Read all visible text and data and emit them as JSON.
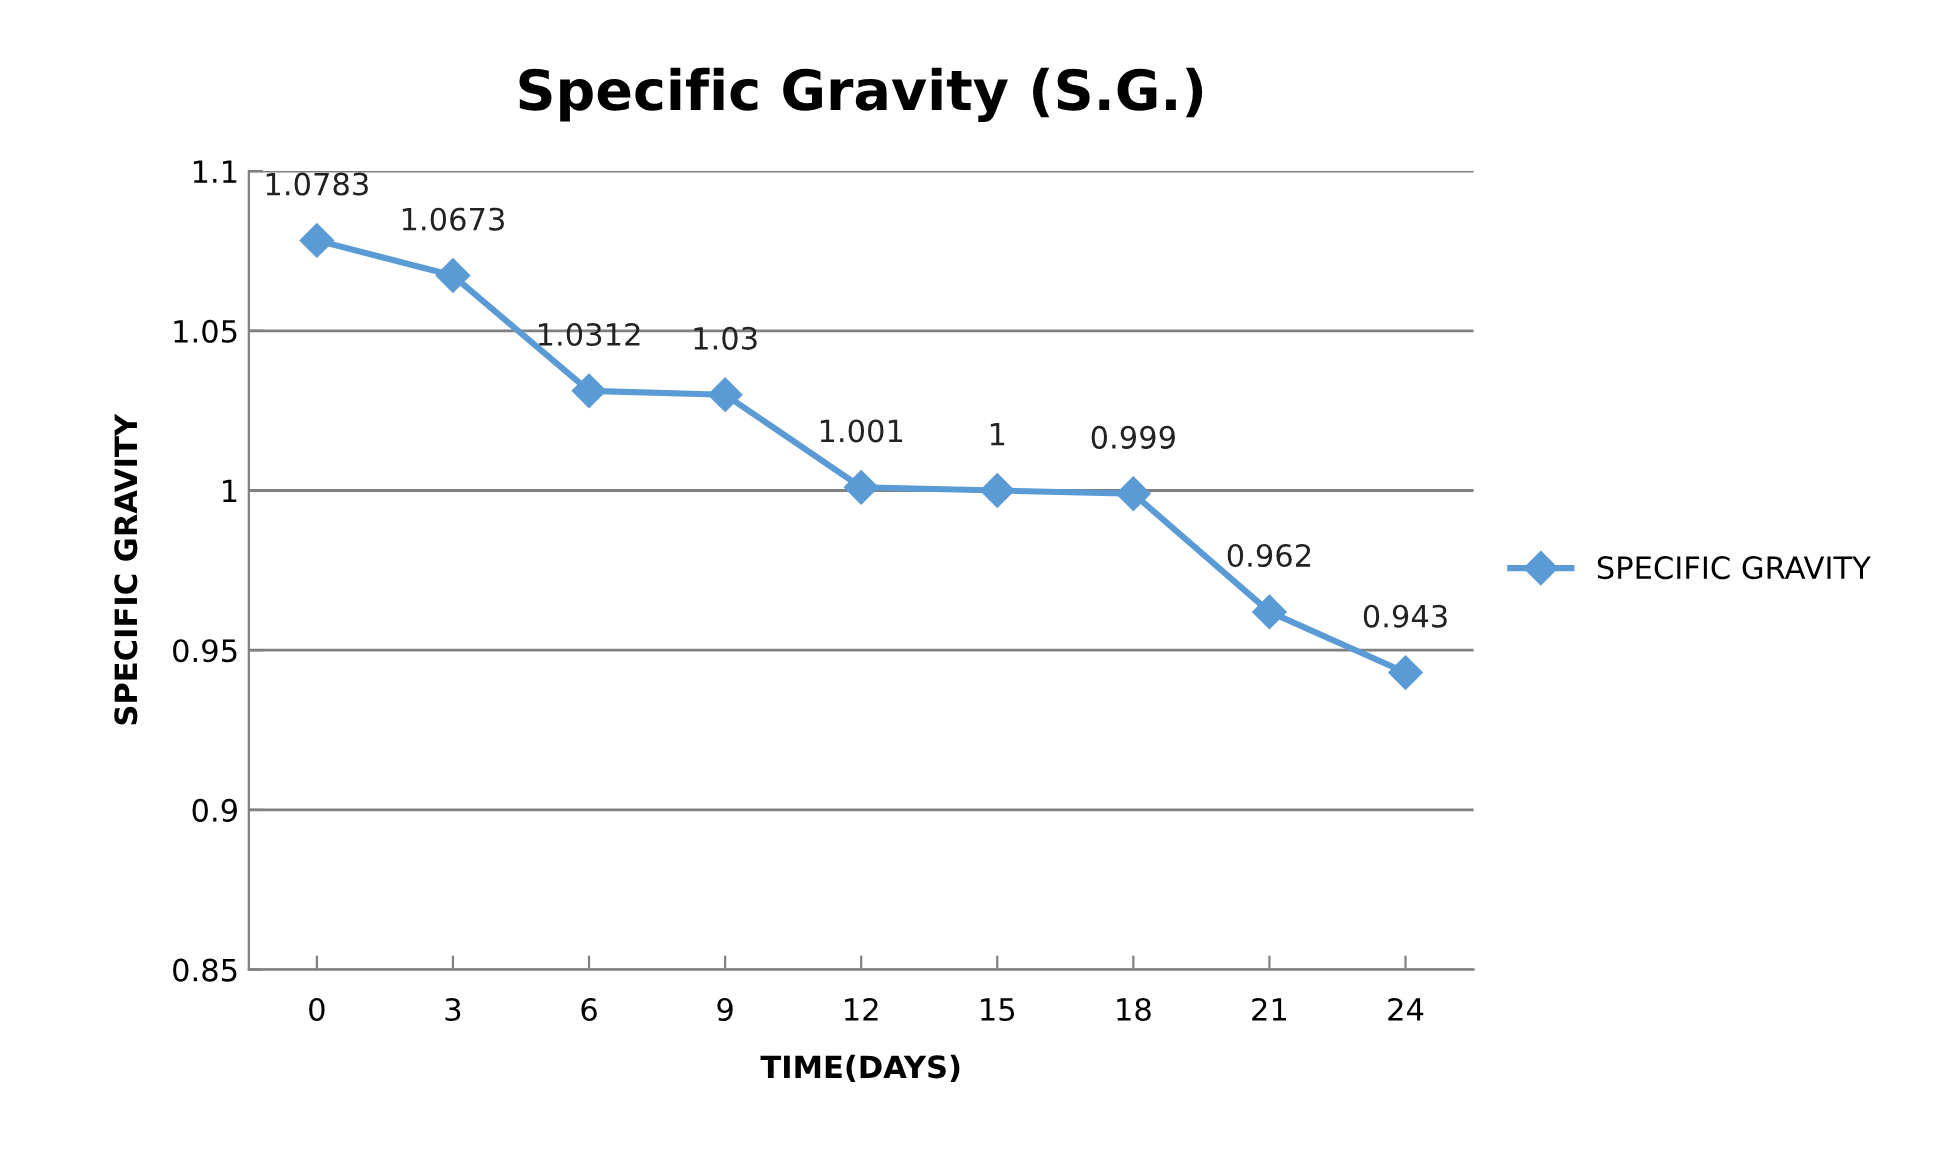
{
  "chart_data": {
    "type": "line",
    "title": "Specific Gravity (S.G.)",
    "xlabel": "TIME(DAYS)",
    "ylabel": "SPECIFIC GRAVITY",
    "categories": [
      "0",
      "3",
      "6",
      "9",
      "12",
      "15",
      "18",
      "21",
      "24"
    ],
    "series": [
      {
        "name": "SPECIFIC GRAVITY",
        "color": "#5b9bd5",
        "values": [
          1.0783,
          1.0673,
          1.0312,
          1.03,
          1.001,
          1,
          0.999,
          0.962,
          0.943
        ]
      }
    ],
    "ylim": [
      0.85,
      1.1
    ],
    "yticks": [
      0.85,
      0.9,
      0.95,
      1,
      1.05,
      1.1
    ],
    "grid": "y",
    "legend": "right",
    "marker": "diamond",
    "line_style": "solid",
    "data_labels": true
  }
}
